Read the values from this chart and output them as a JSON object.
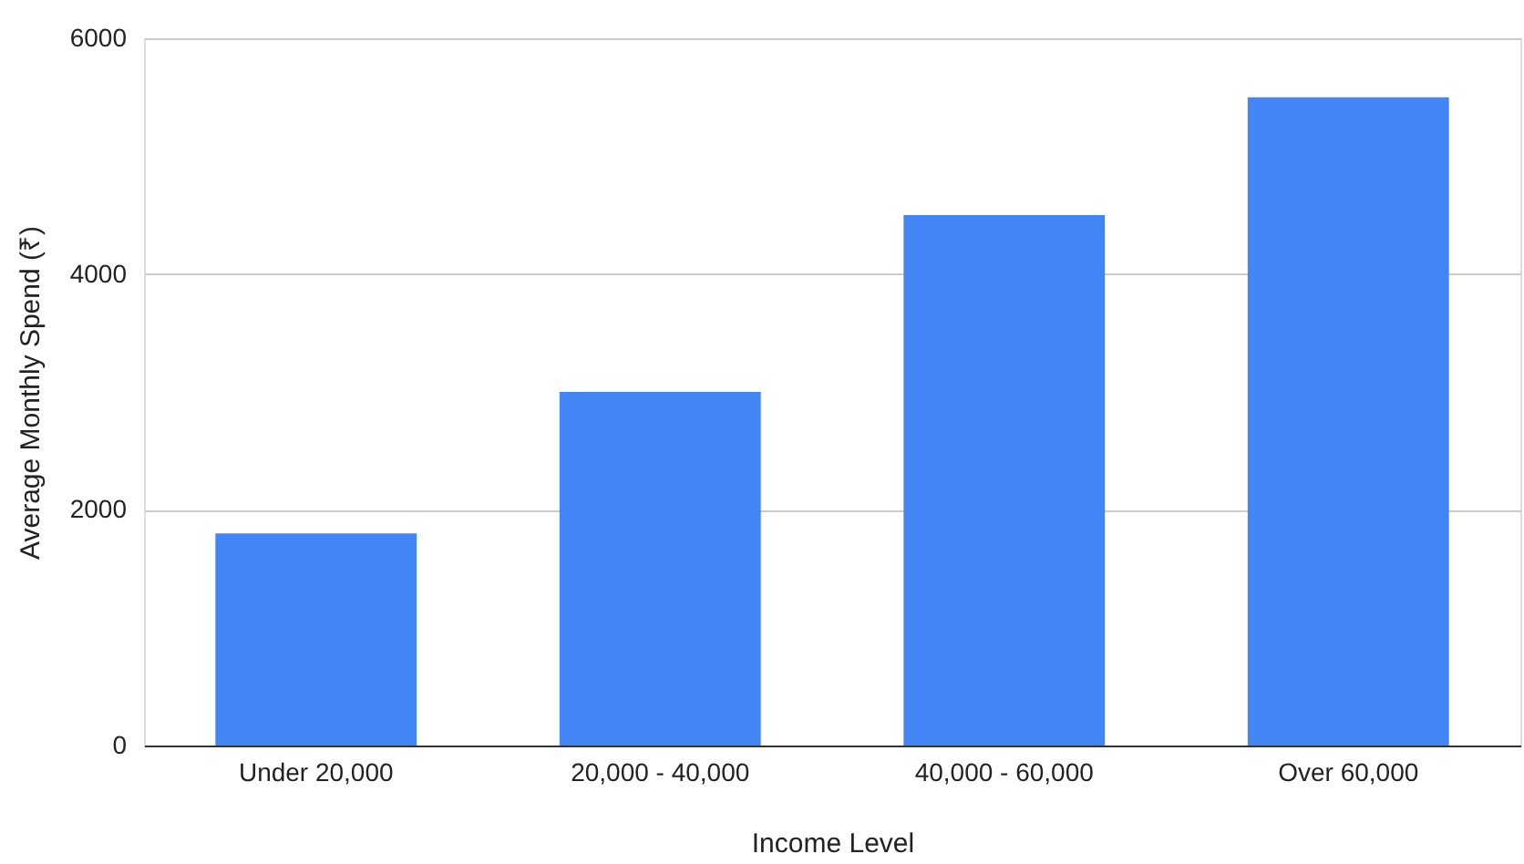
{
  "chart_data": {
    "type": "bar",
    "xlabel": "Income Level",
    "ylabel": "Average Monthly Spend (₹)",
    "categories": [
      "Under 20,000",
      "20,000 - 40,000",
      "40,000 - 60,000",
      "Over 60,000"
    ],
    "values": [
      1800,
      3000,
      4500,
      5500
    ],
    "color": "#4285f4",
    "ylim": [
      0,
      6000
    ],
    "yticks": [
      0,
      2000,
      4000,
      6000
    ],
    "grid": "y"
  }
}
